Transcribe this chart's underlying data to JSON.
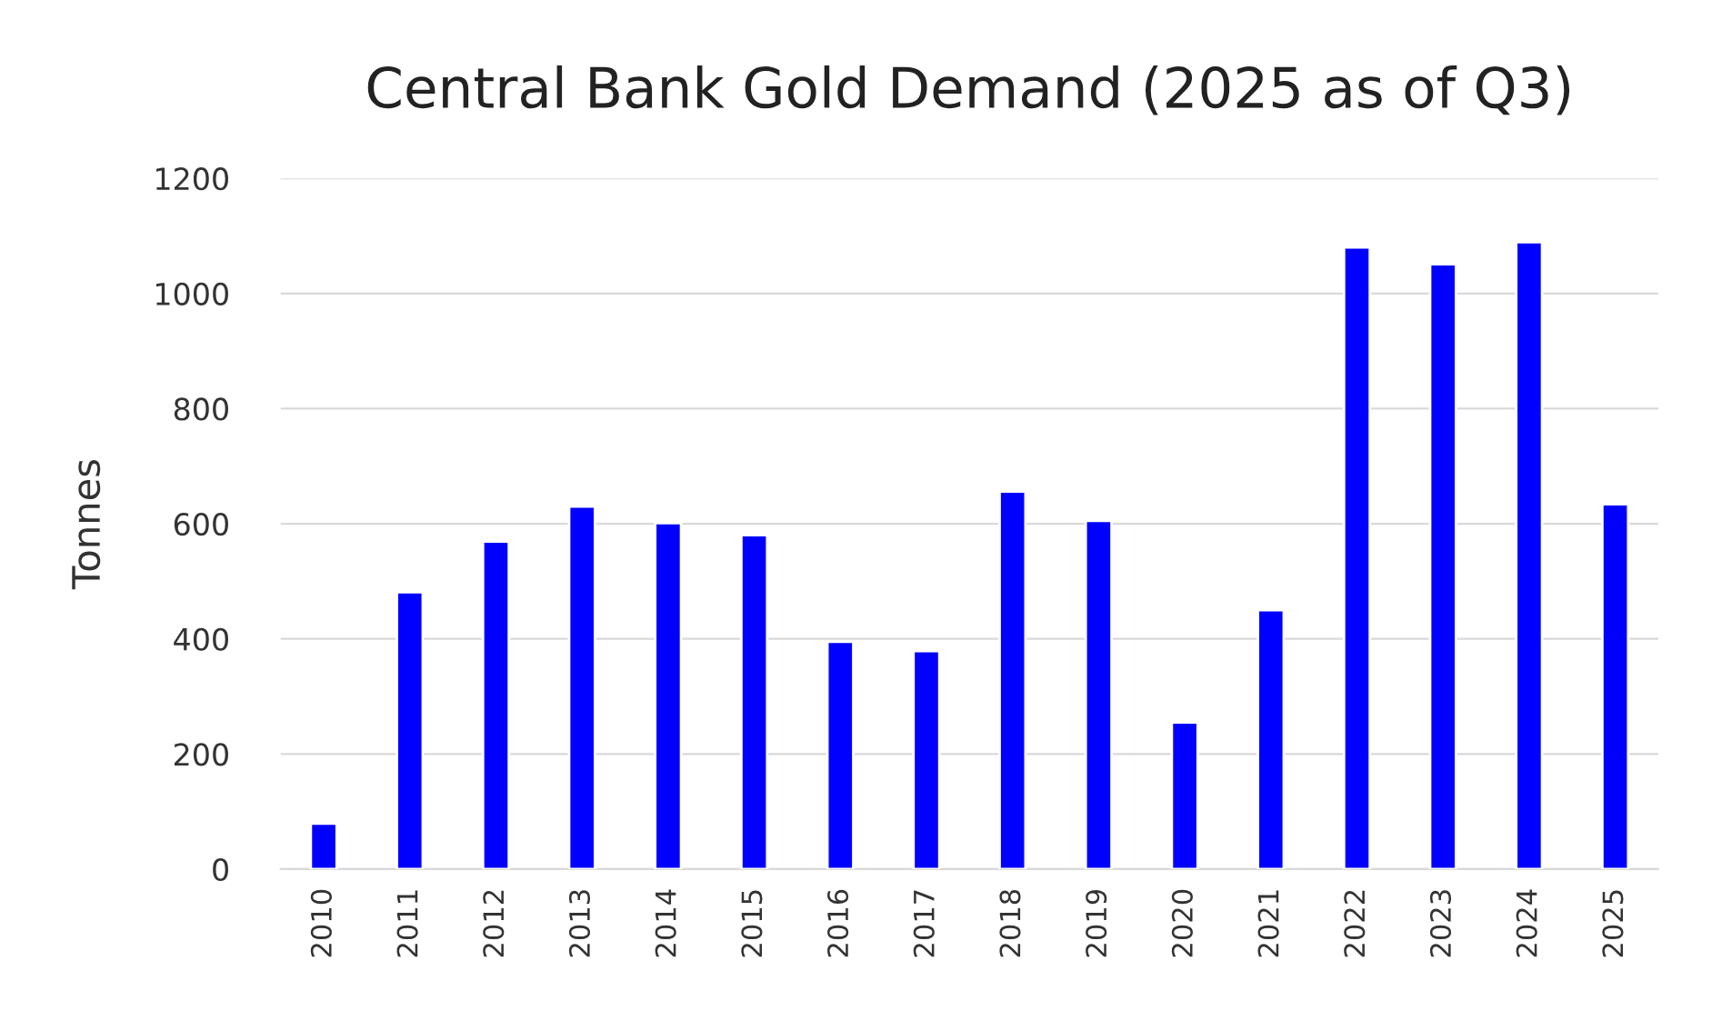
{
  "chart_data": {
    "type": "bar",
    "title": "Central Bank Gold Demand (2025 as of Q3)",
    "ylabel": "Tonnes",
    "categories": [
      "2010",
      "2011",
      "2012",
      "2013",
      "2014",
      "2015",
      "2016",
      "2017",
      "2018",
      "2019",
      "2020",
      "2021",
      "2022",
      "2023",
      "2024",
      "2025"
    ],
    "values": [
      79,
      481,
      569,
      630,
      601,
      580,
      395,
      379,
      656,
      605,
      255,
      450,
      1080,
      1051,
      1089,
      634
    ],
    "color": "#0000ff",
    "ylim": [
      0,
      1200
    ],
    "yticks": [
      0,
      200,
      400,
      600,
      800,
      1000,
      1200
    ],
    "grid": "y",
    "legend": false
  }
}
